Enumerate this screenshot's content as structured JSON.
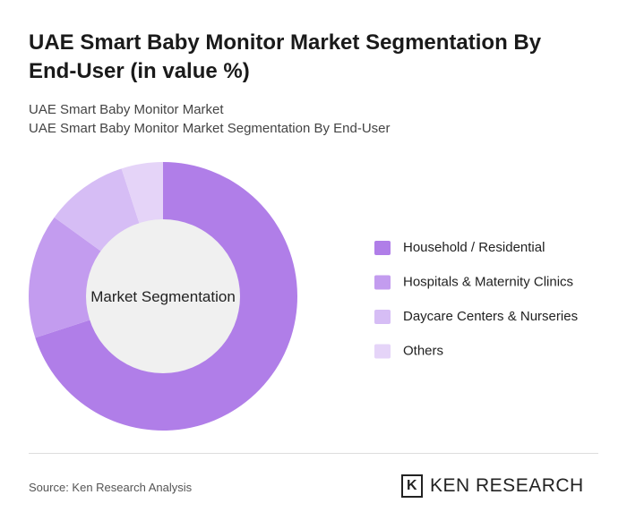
{
  "chart_data": {
    "type": "donut",
    "title": "UAE Smart Baby Monitor Market Segmentation By End-User (in value %)",
    "subtitle": [
      "UAE Smart Baby Monitor Market",
      "UAE Smart Baby Monitor Market Segmentation By End-User"
    ],
    "center_label": "Market Segmentation",
    "categories": [
      "Household / Residential",
      "Hospitals & Maternity Clinics",
      "Daycare Centers & Nurseries",
      "Others"
    ],
    "values": [
      70,
      15,
      10,
      5
    ],
    "colors": [
      "#b07ee8",
      "#c39cef",
      "#d6bdf5",
      "#e5d4f8"
    ],
    "source": "Source: Ken Research Analysis",
    "logo": "KEN RESEARCH"
  }
}
